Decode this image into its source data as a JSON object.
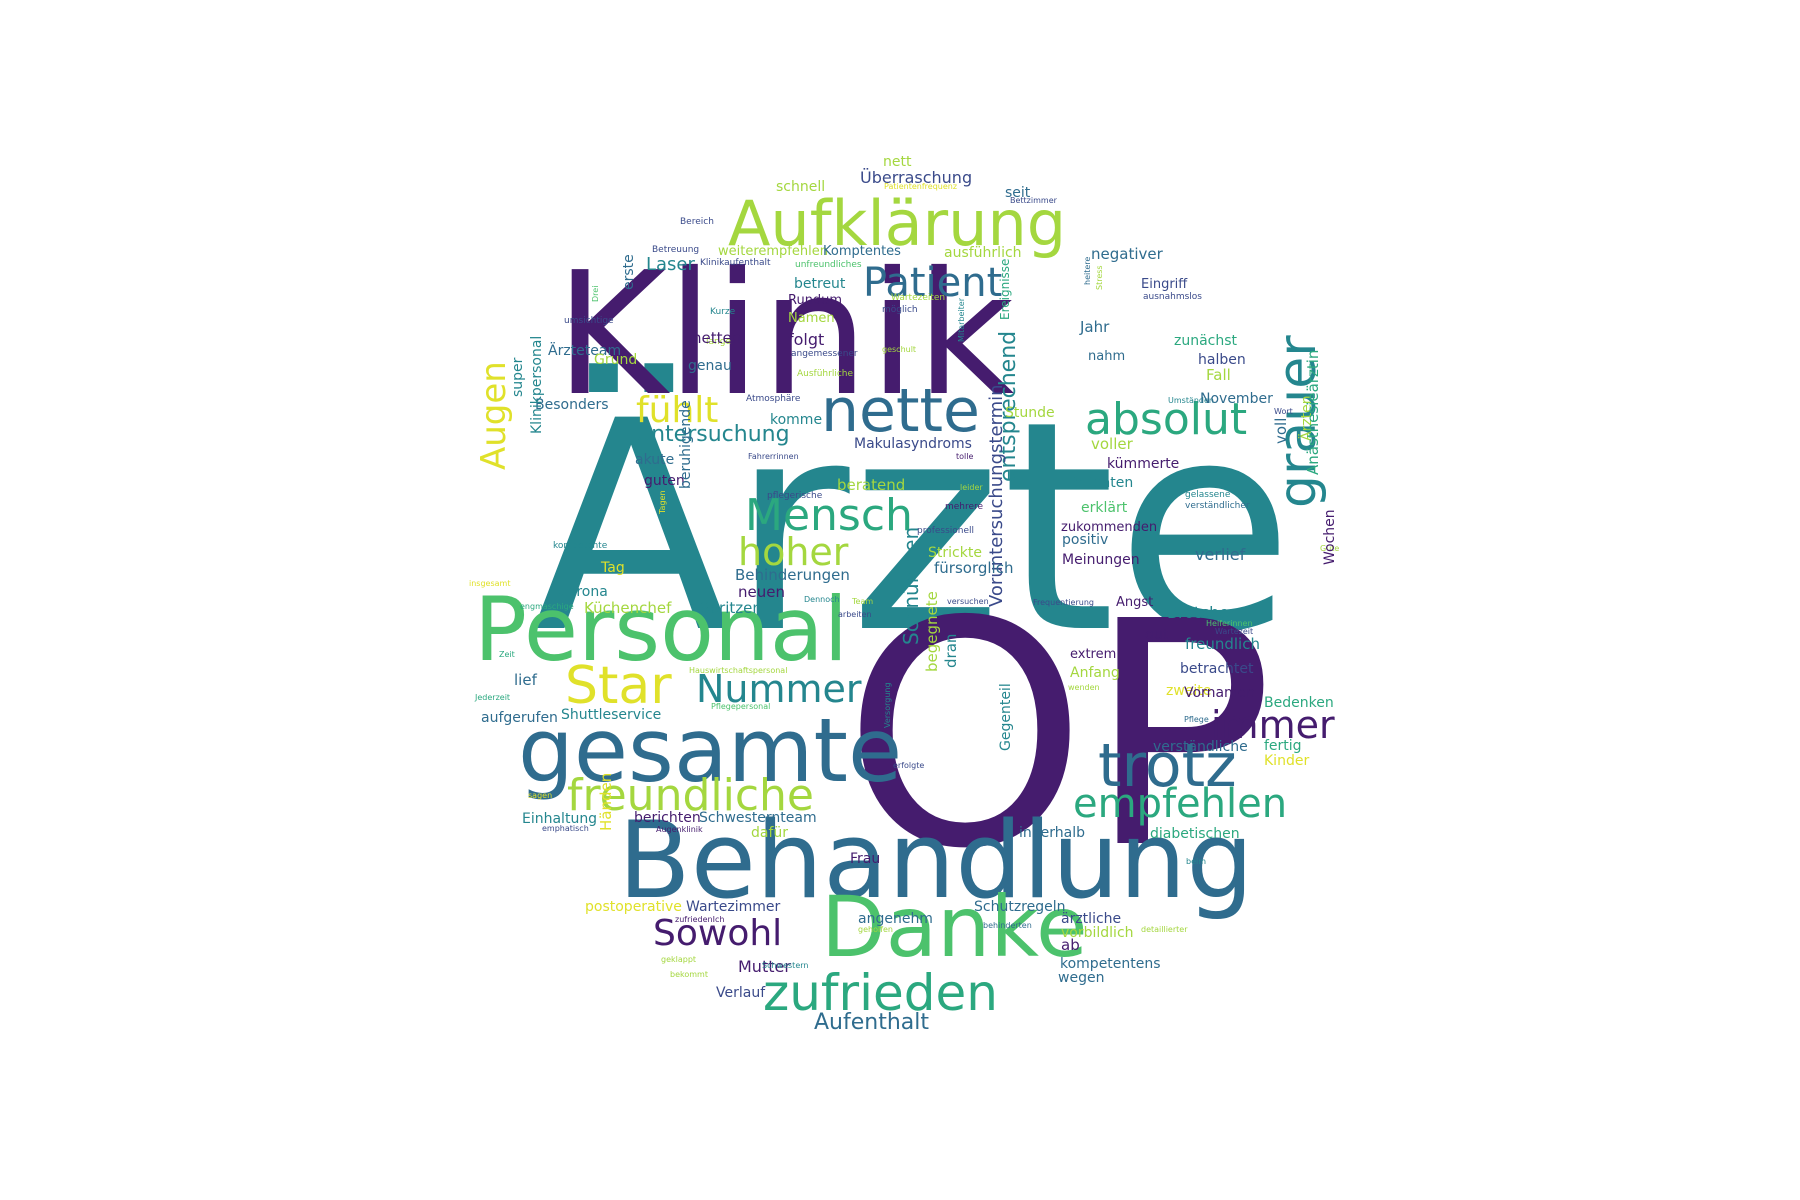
{
  "title": "",
  "palette": {
    "d": "#451C6E",
    "p": "#3A4A8A",
    "b": "#2F6C8E",
    "t": "#24868E",
    "g": "#2BA87F",
    "l": "#4CC26C",
    "y": "#A4D73F",
    "k": "#E0E12A"
  },
  "words": [
    {
      "text": "Ärzte",
      "c": "t"
    },
    {
      "text": "OP",
      "c": "d"
    },
    {
      "text": "Klinik",
      "c": "d"
    },
    {
      "text": "Behandlung",
      "c": "b"
    },
    {
      "text": "Personal",
      "c": "l"
    },
    {
      "text": "gesamte",
      "c": "b"
    },
    {
      "text": "Danke",
      "c": "l"
    },
    {
      "text": "Aufklärung",
      "c": "y"
    },
    {
      "text": "nette",
      "c": "b"
    },
    {
      "text": "trotz",
      "c": "b"
    },
    {
      "text": "zufrieden",
      "c": "g"
    },
    {
      "text": "freundliche",
      "c": "y"
    },
    {
      "text": "Mensch",
      "c": "g"
    },
    {
      "text": "absolut",
      "c": "g"
    },
    {
      "text": "Patient",
      "c": "b"
    },
    {
      "text": "empfehlen",
      "c": "g"
    },
    {
      "text": "grauer",
      "c": "t"
    },
    {
      "text": "Star",
      "c": "k"
    },
    {
      "text": "Nummer",
      "c": "t"
    },
    {
      "text": "immer",
      "c": "d"
    },
    {
      "text": "hoher",
      "c": "y"
    },
    {
      "text": "Sowohl",
      "c": "d"
    },
    {
      "text": "fühlt",
      "c": "k"
    },
    {
      "text": "Augen",
      "c": "k"
    },
    {
      "text": "Aufenthalt",
      "c": "b"
    },
    {
      "text": "Untersuchung",
      "c": "t"
    },
    {
      "text": "entsprechend",
      "c": "t"
    },
    {
      "text": "Schnürchen",
      "c": "t"
    },
    {
      "text": "Voruntersuchungstermin",
      "c": "p"
    },
    {
      "text": "Überraschung",
      "c": "p"
    },
    {
      "text": "nett",
      "c": "y"
    },
    {
      "text": "schnell",
      "c": "y"
    },
    {
      "text": "seit",
      "c": "b"
    },
    {
      "text": "Patientenfrequenz",
      "c": "k"
    },
    {
      "text": "Bettzimmer",
      "c": "p"
    },
    {
      "text": "Bereich",
      "c": "p"
    },
    {
      "text": "Betreuung",
      "c": "p"
    },
    {
      "text": "weiterempfehlen",
      "c": "y"
    },
    {
      "text": "Komptentes",
      "c": "b"
    },
    {
      "text": "ausführlich",
      "c": "y"
    },
    {
      "text": "negativer",
      "c": "b"
    },
    {
      "text": "Klinikaufenthalt",
      "c": "p"
    },
    {
      "text": "unfreundliches",
      "c": "l"
    },
    {
      "text": "Laser",
      "c": "t"
    },
    {
      "text": "erste",
      "c": "b"
    },
    {
      "text": "betreut",
      "c": "t"
    },
    {
      "text": "Wartezeiten",
      "c": "y"
    },
    {
      "text": "möglich",
      "c": "p"
    },
    {
      "text": "Eingriff",
      "c": "p"
    },
    {
      "text": "ausnahmslos",
      "c": "p"
    },
    {
      "text": "heitere",
      "c": "b"
    },
    {
      "text": "Stress",
      "c": "y"
    },
    {
      "text": "Drei",
      "c": "l"
    },
    {
      "text": "umsichtige",
      "c": "p"
    },
    {
      "text": "Kurze",
      "c": "t"
    },
    {
      "text": "lange",
      "c": "y"
    },
    {
      "text": "Rundum",
      "c": "d"
    },
    {
      "text": "Namen",
      "c": "y"
    },
    {
      "text": "Jahr",
      "c": "b"
    },
    {
      "text": "zunächst",
      "c": "g"
    },
    {
      "text": "netten",
      "c": "d"
    },
    {
      "text": "folgt",
      "c": "d"
    },
    {
      "text": "geschult",
      "c": "y"
    },
    {
      "text": "Ereignisse",
      "c": "g"
    },
    {
      "text": "Mitarbeiter",
      "c": "t"
    },
    {
      "text": "Ärzteteam",
      "c": "b"
    },
    {
      "text": "angemessener",
      "c": "p"
    },
    {
      "text": "nahm",
      "c": "b"
    },
    {
      "text": "halben",
      "c": "p"
    },
    {
      "text": "Grund",
      "c": "y"
    },
    {
      "text": "genau",
      "c": "b"
    },
    {
      "text": "Ausführliche",
      "c": "y"
    },
    {
      "text": "Fall",
      "c": "y"
    },
    {
      "text": "Besonders",
      "c": "b"
    },
    {
      "text": "Atmosphäre",
      "c": "p"
    },
    {
      "text": "Umständen",
      "c": "t"
    },
    {
      "text": "November",
      "c": "b"
    },
    {
      "text": "super",
      "c": "t"
    },
    {
      "text": "komme",
      "c": "t"
    },
    {
      "text": "Stunde",
      "c": "y"
    },
    {
      "text": "Wort",
      "c": "p"
    },
    {
      "text": "Klinikpersonal",
      "c": "t"
    },
    {
      "text": "Makulasyndroms",
      "c": "p"
    },
    {
      "text": "voller",
      "c": "y"
    },
    {
      "text": "Fahrerrinnen",
      "c": "p"
    },
    {
      "text": "kümmerte",
      "c": "d"
    },
    {
      "text": "akute",
      "c": "b"
    },
    {
      "text": "tolle",
      "c": "d"
    },
    {
      "text": "voll",
      "c": "b"
    },
    {
      "text": "Ärzten",
      "c": "y"
    },
    {
      "text": "guten",
      "c": "d"
    },
    {
      "text": "beratend",
      "c": "y"
    },
    {
      "text": "Patienten",
      "c": "t"
    },
    {
      "text": "pflegerische",
      "c": "p"
    },
    {
      "text": "leider",
      "c": "y"
    },
    {
      "text": "gelassene",
      "c": "t"
    },
    {
      "text": "beruhigende",
      "c": "b"
    },
    {
      "text": "mehrere",
      "c": "d"
    },
    {
      "text": "erklärt",
      "c": "l"
    },
    {
      "text": "Anästhesieärztin",
      "c": "g"
    },
    {
      "text": "kompetente",
      "c": "t"
    },
    {
      "text": "Tagen",
      "c": "k"
    },
    {
      "text": "professionell",
      "c": "p"
    },
    {
      "text": "zukommenden",
      "c": "d"
    },
    {
      "text": "verständlicher",
      "c": "b"
    },
    {
      "text": "positiv",
      "c": "b"
    },
    {
      "text": "verlief",
      "c": "b"
    },
    {
      "text": "Gute",
      "c": "y"
    },
    {
      "text": "Tag",
      "c": "k"
    },
    {
      "text": "Behinderungen",
      "c": "b"
    },
    {
      "text": "Strickte",
      "c": "y"
    },
    {
      "text": "fürsorglich",
      "c": "b"
    },
    {
      "text": "Meinungen",
      "c": "d"
    },
    {
      "text": "insgesamt",
      "c": "k"
    },
    {
      "text": "Wochen",
      "c": "d"
    },
    {
      "text": "Corona",
      "c": "t"
    },
    {
      "text": "neuen",
      "c": "d"
    },
    {
      "text": "Dennoch",
      "c": "t"
    },
    {
      "text": "Team",
      "c": "y"
    },
    {
      "text": "versuchen",
      "c": "p"
    },
    {
      "text": "Frequentierung",
      "c": "p"
    },
    {
      "text": "Angst",
      "c": "d"
    },
    {
      "text": "engmaschige",
      "c": "g"
    },
    {
      "text": "Küchenchef",
      "c": "y"
    },
    {
      "text": "Spritzen",
      "c": "t"
    },
    {
      "text": "arbeiten",
      "c": "p"
    },
    {
      "text": "Brötchen",
      "c": "t"
    },
    {
      "text": "Helferinnen",
      "c": "l"
    },
    {
      "text": "Wartezeit",
      "c": "p"
    },
    {
      "text": "gut",
      "c": "d"
    },
    {
      "text": "freundlich",
      "c": "t"
    },
    {
      "text": "Zeit",
      "c": "g"
    },
    {
      "text": "extrem",
      "c": "d"
    },
    {
      "text": "lief",
      "c": "b"
    },
    {
      "text": "Anfang",
      "c": "y"
    },
    {
      "text": "betrachtet",
      "c": "p"
    },
    {
      "text": "Hauswirtschaftspersonal",
      "c": "y"
    },
    {
      "text": "dran",
      "c": "t"
    },
    {
      "text": "begegnete",
      "c": "y"
    },
    {
      "text": "wenden",
      "c": "y"
    },
    {
      "text": "zweite",
      "c": "k"
    },
    {
      "text": "Vornamen",
      "c": "d"
    },
    {
      "text": "Jederzeit",
      "c": "g"
    },
    {
      "text": "Pflegepersonal",
      "c": "l"
    },
    {
      "text": "Bedenken",
      "c": "g"
    },
    {
      "text": "Shuttleservice",
      "c": "t"
    },
    {
      "text": "aufgerufen",
      "c": "b"
    },
    {
      "text": "Pflege",
      "c": "b"
    },
    {
      "text": "Versorgung",
      "c": "t"
    },
    {
      "text": "verständliche",
      "c": "b"
    },
    {
      "text": "fertig",
      "c": "g"
    },
    {
      "text": "Gegenteil",
      "c": "t"
    },
    {
      "text": "erfolgte",
      "c": "p"
    },
    {
      "text": "Kinder",
      "c": "k"
    },
    {
      "text": "sagen",
      "c": "k"
    },
    {
      "text": "Frau",
      "c": "d"
    },
    {
      "text": "Einhaltung",
      "c": "t"
    },
    {
      "text": "berichten",
      "c": "d"
    },
    {
      "text": "Schwesternteam",
      "c": "b"
    },
    {
      "text": "emphatisch",
      "c": "p"
    },
    {
      "text": "Augenklinik",
      "c": "d"
    },
    {
      "text": "dafür",
      "c": "y"
    },
    {
      "text": "innerhalb",
      "c": "b"
    },
    {
      "text": "diabetischen",
      "c": "g"
    },
    {
      "text": "Händen",
      "c": "k"
    },
    {
      "text": "beim",
      "c": "t"
    },
    {
      "text": "postoperative",
      "c": "k"
    },
    {
      "text": "Wartezimmer",
      "c": "p"
    },
    {
      "text": "Schutzregeln",
      "c": "b"
    },
    {
      "text": "zufriedenIch",
      "c": "d"
    },
    {
      "text": "angenehm",
      "c": "b"
    },
    {
      "text": "behinderten",
      "c": "b"
    },
    {
      "text": "ärztliche",
      "c": "p"
    },
    {
      "text": "geholfen",
      "c": "y"
    },
    {
      "text": "vorbildlich",
      "c": "y"
    },
    {
      "text": "detaillierter",
      "c": "y"
    },
    {
      "text": "geklappt",
      "c": "y"
    },
    {
      "text": "ab",
      "c": "d"
    },
    {
      "text": "Mutter",
      "c": "d"
    },
    {
      "text": "Schwestern",
      "c": "t"
    },
    {
      "text": "kompetentens",
      "c": "b"
    },
    {
      "text": "bekommt",
      "c": "y"
    },
    {
      "text": "wegen",
      "c": "b"
    },
    {
      "text": "Verlauf",
      "c": "p"
    }
  ]
}
